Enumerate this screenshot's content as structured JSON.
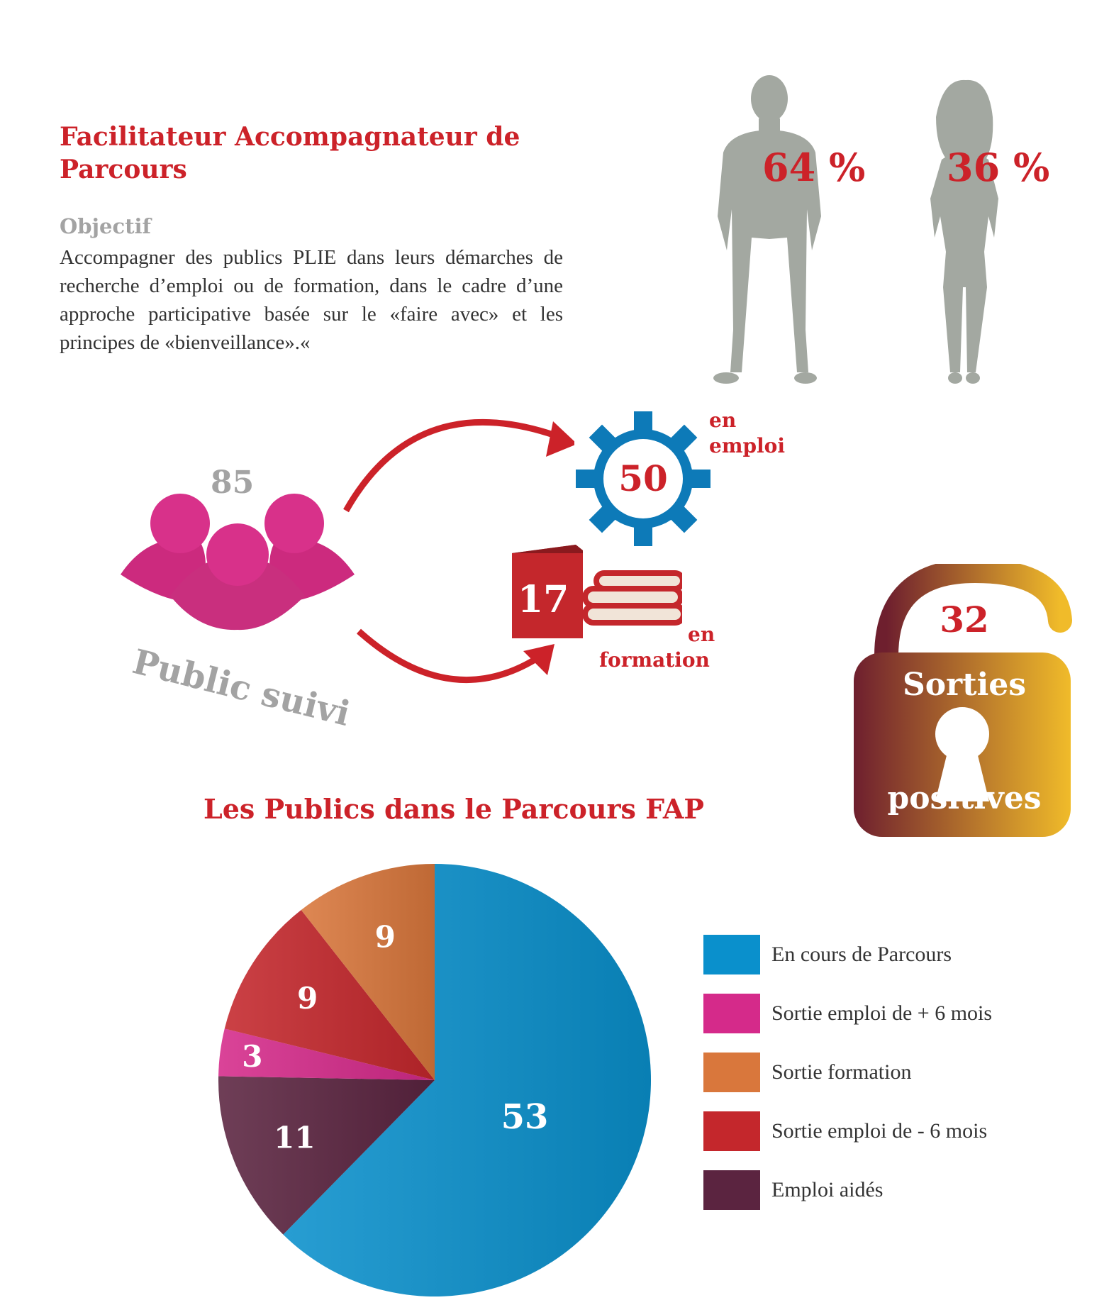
{
  "header": {
    "title": "Facilitateur Accompagnateur de Parcours",
    "objective_label": "Objectif",
    "objective_text": "Accompagner des publics PLIE dans leurs démarches de recherche d’emploi ou de formation, dans le cadre d’une approche participative basée sur le «faire avec» et les principes de «bienveillance».«"
  },
  "gender": {
    "men_pct": "64 %",
    "women_pct": "36 %"
  },
  "flow": {
    "public_count": "85",
    "public_label": "Public suivi",
    "emploi_count": "50",
    "emploi_label_1": "en",
    "emploi_label_2": "emploi",
    "formation_count": "17",
    "formation_label_1": "en",
    "formation_label_2": "formation"
  },
  "sorties": {
    "count": "32",
    "label_1": "Sorties",
    "label_2": "positives"
  },
  "chart_data": {
    "type": "pie",
    "title": "Les Publics dans le Parcours FAP",
    "slices": [
      {
        "label": "En cours de Parcours",
        "value": 53,
        "color": "#0a90cc"
      },
      {
        "label": "Emploi aidés",
        "value": 11,
        "color": "#5b2440"
      },
      {
        "label": "Sortie emploi de + 6 mois",
        "value": 3,
        "color": "#d52a8a"
      },
      {
        "label": "Sortie emploi de - 6 mois",
        "value": 9,
        "color": "#c4272c"
      },
      {
        "label": "Sortie formation",
        "value": 9,
        "color": "#d9773c"
      }
    ],
    "legend": [
      {
        "label": "En cours de Parcours",
        "color": "#0a90cc"
      },
      {
        "label": "Sortie emploi de + 6 mois",
        "color": "#d52a8a"
      },
      {
        "label": "Sortie formation",
        "color": "#d9773c"
      },
      {
        "label": "Sortie emploi de - 6 mois",
        "color": "#c4272c"
      },
      {
        "label": "Emploi aidés",
        "color": "#5b2440"
      }
    ],
    "legend_position": "right"
  }
}
